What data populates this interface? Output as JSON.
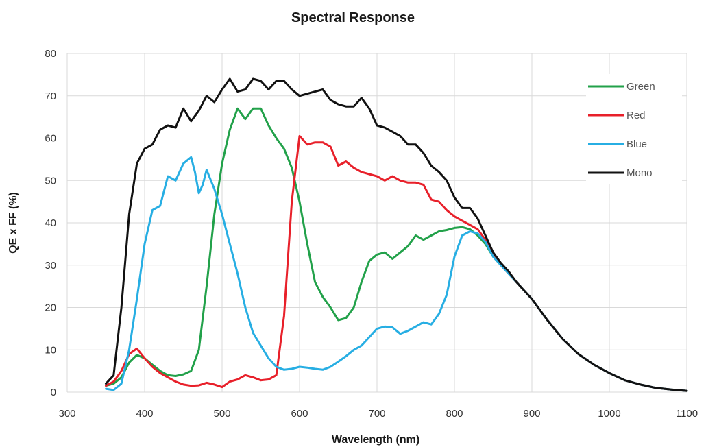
{
  "chart_data": {
    "type": "line",
    "title": "Spectral Response",
    "xlabel": "Wavelength (nm)",
    "ylabel": "QE x FF (%)",
    "xlim": [
      300,
      1100
    ],
    "ylim": [
      0,
      80
    ],
    "xticks": [
      300,
      400,
      500,
      600,
      700,
      800,
      900,
      1000,
      1100
    ],
    "yticks": [
      0,
      10,
      20,
      30,
      40,
      50,
      60,
      70,
      80
    ],
    "grid": true,
    "legend_position": "right",
    "series": [
      {
        "name": "Green",
        "color": "#22a14a",
        "points": [
          [
            350,
            1.5
          ],
          [
            360,
            2
          ],
          [
            370,
            3.5
          ],
          [
            380,
            7
          ],
          [
            390,
            8.8
          ],
          [
            400,
            8
          ],
          [
            410,
            6.5
          ],
          [
            420,
            5
          ],
          [
            430,
            4
          ],
          [
            440,
            3.8
          ],
          [
            450,
            4.2
          ],
          [
            460,
            5
          ],
          [
            470,
            10
          ],
          [
            480,
            25
          ],
          [
            490,
            42
          ],
          [
            500,
            54
          ],
          [
            510,
            62
          ],
          [
            520,
            67
          ],
          [
            530,
            64.5
          ],
          [
            540,
            67
          ],
          [
            550,
            67
          ],
          [
            560,
            63
          ],
          [
            570,
            60
          ],
          [
            580,
            57.5
          ],
          [
            590,
            53
          ],
          [
            600,
            45
          ],
          [
            610,
            35
          ],
          [
            620,
            26
          ],
          [
            630,
            22.5
          ],
          [
            640,
            20
          ],
          [
            650,
            17
          ],
          [
            660,
            17.5
          ],
          [
            670,
            20
          ],
          [
            680,
            26
          ],
          [
            690,
            31
          ],
          [
            700,
            32.5
          ],
          [
            710,
            33
          ],
          [
            720,
            31.5
          ],
          [
            730,
            33
          ],
          [
            740,
            34.5
          ],
          [
            750,
            37
          ],
          [
            760,
            36
          ],
          [
            770,
            37
          ],
          [
            780,
            38
          ],
          [
            790,
            38.3
          ],
          [
            800,
            38.8
          ],
          [
            810,
            39
          ],
          [
            820,
            38.5
          ],
          [
            830,
            37
          ],
          [
            840,
            35
          ],
          [
            850,
            32
          ],
          [
            860,
            30
          ],
          [
            870,
            28
          ],
          [
            880,
            26
          ],
          [
            900,
            22
          ],
          [
            920,
            17
          ],
          [
            940,
            12.5
          ],
          [
            960,
            9
          ],
          [
            980,
            6.5
          ],
          [
            1000,
            4.5
          ],
          [
            1020,
            2.8
          ],
          [
            1040,
            1.8
          ],
          [
            1060,
            1
          ],
          [
            1080,
            0.6
          ],
          [
            1100,
            0.3
          ]
        ]
      },
      {
        "name": "Red",
        "color": "#e8202a",
        "points": [
          [
            350,
            1.5
          ],
          [
            360,
            2.5
          ],
          [
            370,
            5
          ],
          [
            380,
            9
          ],
          [
            390,
            10.3
          ],
          [
            400,
            8
          ],
          [
            410,
            6
          ],
          [
            420,
            4.5
          ],
          [
            430,
            3.5
          ],
          [
            440,
            2.5
          ],
          [
            450,
            1.8
          ],
          [
            460,
            1.5
          ],
          [
            470,
            1.6
          ],
          [
            480,
            2.2
          ],
          [
            490,
            1.8
          ],
          [
            500,
            1.2
          ],
          [
            510,
            2.5
          ],
          [
            520,
            3
          ],
          [
            530,
            4
          ],
          [
            540,
            3.5
          ],
          [
            550,
            2.8
          ],
          [
            560,
            3
          ],
          [
            570,
            4
          ],
          [
            580,
            18
          ],
          [
            590,
            45
          ],
          [
            600,
            60.5
          ],
          [
            610,
            58.5
          ],
          [
            620,
            59
          ],
          [
            630,
            59
          ],
          [
            640,
            58
          ],
          [
            650,
            53.5
          ],
          [
            660,
            54.5
          ],
          [
            670,
            53
          ],
          [
            680,
            52
          ],
          [
            690,
            51.5
          ],
          [
            700,
            51
          ],
          [
            710,
            50
          ],
          [
            720,
            51
          ],
          [
            730,
            50
          ],
          [
            740,
            49.5
          ],
          [
            750,
            49.5
          ],
          [
            760,
            49
          ],
          [
            770,
            45.5
          ],
          [
            780,
            45
          ],
          [
            790,
            43
          ],
          [
            800,
            41.5
          ],
          [
            810,
            40.5
          ],
          [
            820,
            39.5
          ],
          [
            830,
            38.5
          ],
          [
            840,
            36
          ],
          [
            850,
            32.5
          ],
          [
            860,
            30
          ],
          [
            870,
            28
          ],
          [
            880,
            26
          ],
          [
            900,
            22
          ],
          [
            920,
            17
          ],
          [
            940,
            12.5
          ],
          [
            960,
            9
          ],
          [
            980,
            6.5
          ],
          [
            1000,
            4.5
          ],
          [
            1020,
            2.8
          ],
          [
            1040,
            1.8
          ],
          [
            1060,
            1
          ],
          [
            1080,
            0.6
          ],
          [
            1100,
            0.3
          ]
        ]
      },
      {
        "name": "Blue",
        "color": "#27aee3",
        "points": [
          [
            350,
            0.8
          ],
          [
            360,
            0.5
          ],
          [
            370,
            2
          ],
          [
            380,
            10
          ],
          [
            390,
            22
          ],
          [
            400,
            35
          ],
          [
            410,
            43
          ],
          [
            420,
            44
          ],
          [
            430,
            51
          ],
          [
            440,
            50
          ],
          [
            450,
            54
          ],
          [
            460,
            55.5
          ],
          [
            465,
            52
          ],
          [
            470,
            47
          ],
          [
            475,
            49
          ],
          [
            480,
            52.5
          ],
          [
            490,
            48
          ],
          [
            500,
            42
          ],
          [
            510,
            35
          ],
          [
            520,
            28
          ],
          [
            530,
            20
          ],
          [
            540,
            14
          ],
          [
            550,
            11
          ],
          [
            560,
            8
          ],
          [
            570,
            6
          ],
          [
            580,
            5.3
          ],
          [
            590,
            5.5
          ],
          [
            600,
            6
          ],
          [
            610,
            5.8
          ],
          [
            620,
            5.5
          ],
          [
            630,
            5.3
          ],
          [
            640,
            6
          ],
          [
            650,
            7.2
          ],
          [
            660,
            8.5
          ],
          [
            670,
            10
          ],
          [
            680,
            11
          ],
          [
            690,
            13
          ],
          [
            700,
            15
          ],
          [
            710,
            15.5
          ],
          [
            720,
            15.3
          ],
          [
            730,
            13.8
          ],
          [
            740,
            14.5
          ],
          [
            750,
            15.5
          ],
          [
            760,
            16.5
          ],
          [
            770,
            16
          ],
          [
            780,
            18.5
          ],
          [
            790,
            23
          ],
          [
            800,
            32
          ],
          [
            810,
            37
          ],
          [
            820,
            38
          ],
          [
            830,
            37.5
          ],
          [
            840,
            35.5
          ],
          [
            850,
            32
          ],
          [
            860,
            30
          ],
          [
            870,
            28
          ],
          [
            880,
            26
          ],
          [
            900,
            22
          ],
          [
            920,
            17
          ],
          [
            940,
            12.5
          ],
          [
            960,
            9
          ],
          [
            980,
            6.5
          ],
          [
            1000,
            4.5
          ],
          [
            1020,
            2.8
          ],
          [
            1040,
            1.8
          ],
          [
            1060,
            1
          ],
          [
            1080,
            0.6
          ],
          [
            1100,
            0.3
          ]
        ]
      },
      {
        "name": "Mono",
        "color": "#111111",
        "points": [
          [
            350,
            2
          ],
          [
            360,
            4
          ],
          [
            370,
            20
          ],
          [
            380,
            42
          ],
          [
            390,
            54
          ],
          [
            400,
            57.5
          ],
          [
            410,
            58.5
          ],
          [
            420,
            62
          ],
          [
            430,
            63
          ],
          [
            440,
            62.5
          ],
          [
            450,
            67
          ],
          [
            460,
            64
          ],
          [
            470,
            66.5
          ],
          [
            480,
            70
          ],
          [
            490,
            68.5
          ],
          [
            500,
            71.5
          ],
          [
            510,
            74
          ],
          [
            520,
            71
          ],
          [
            530,
            71.5
          ],
          [
            540,
            74
          ],
          [
            550,
            73.5
          ],
          [
            560,
            71.5
          ],
          [
            570,
            73.5
          ],
          [
            580,
            73.5
          ],
          [
            590,
            71.5
          ],
          [
            600,
            70
          ],
          [
            610,
            70.5
          ],
          [
            620,
            71
          ],
          [
            630,
            71.5
          ],
          [
            640,
            69
          ],
          [
            650,
            68
          ],
          [
            660,
            67.5
          ],
          [
            670,
            67.5
          ],
          [
            680,
            69.5
          ],
          [
            690,
            67
          ],
          [
            700,
            63
          ],
          [
            710,
            62.5
          ],
          [
            720,
            61.5
          ],
          [
            730,
            60.5
          ],
          [
            740,
            58.5
          ],
          [
            750,
            58.5
          ],
          [
            760,
            56.5
          ],
          [
            770,
            53.5
          ],
          [
            780,
            52
          ],
          [
            790,
            50
          ],
          [
            800,
            46
          ],
          [
            810,
            43.5
          ],
          [
            820,
            43.5
          ],
          [
            830,
            41
          ],
          [
            840,
            37
          ],
          [
            850,
            33
          ],
          [
            860,
            30.5
          ],
          [
            870,
            28.5
          ],
          [
            880,
            26
          ],
          [
            900,
            22
          ],
          [
            920,
            17
          ],
          [
            940,
            12.5
          ],
          [
            960,
            9
          ],
          [
            980,
            6.5
          ],
          [
            1000,
            4.5
          ],
          [
            1020,
            2.8
          ],
          [
            1040,
            1.8
          ],
          [
            1060,
            1
          ],
          [
            1080,
            0.6
          ],
          [
            1100,
            0.3
          ]
        ]
      }
    ]
  }
}
